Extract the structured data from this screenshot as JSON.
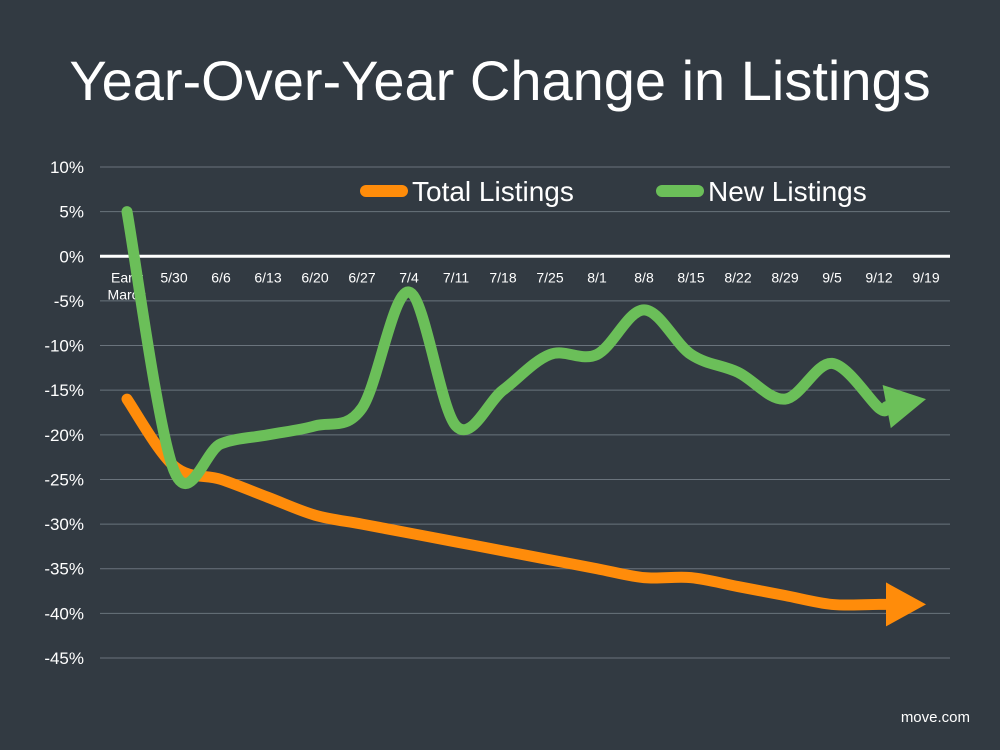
{
  "chart_data": {
    "type": "line",
    "title": "Year-Over-Year Change in Listings",
    "categories": [
      "Early March",
      "5/30",
      "6/6",
      "6/13",
      "6/20",
      "6/27",
      "7/4",
      "7/11",
      "7/18",
      "7/25",
      "8/1",
      "8/8",
      "8/15",
      "8/22",
      "8/29",
      "9/5",
      "9/12",
      "9/19"
    ],
    "y_ticks": [
      "10%",
      "5%",
      "0%",
      "-5%",
      "-10%",
      "-15%",
      "-20%",
      "-25%",
      "-30%",
      "-35%",
      "-40%",
      "-45%"
    ],
    "ylim": [
      -45,
      10
    ],
    "grid": true,
    "legend_position": "top",
    "series": [
      {
        "name": "Total Listings",
        "color": "#ff8c0a",
        "values": [
          -16,
          -23.5,
          -25,
          -27,
          -29,
          -30,
          -31,
          -32,
          -33,
          -34,
          -35,
          -36,
          -36,
          -37,
          -38,
          -39,
          -39,
          -39
        ]
      },
      {
        "name": "New Listings",
        "color": "#6bbf59",
        "values": [
          5,
          -24,
          -21,
          -20,
          -19,
          -17,
          -4,
          -19,
          -15,
          -11,
          -11,
          -6,
          -11,
          -13,
          -16,
          -12,
          -17,
          -16
        ]
      }
    ]
  },
  "source": "move.com"
}
